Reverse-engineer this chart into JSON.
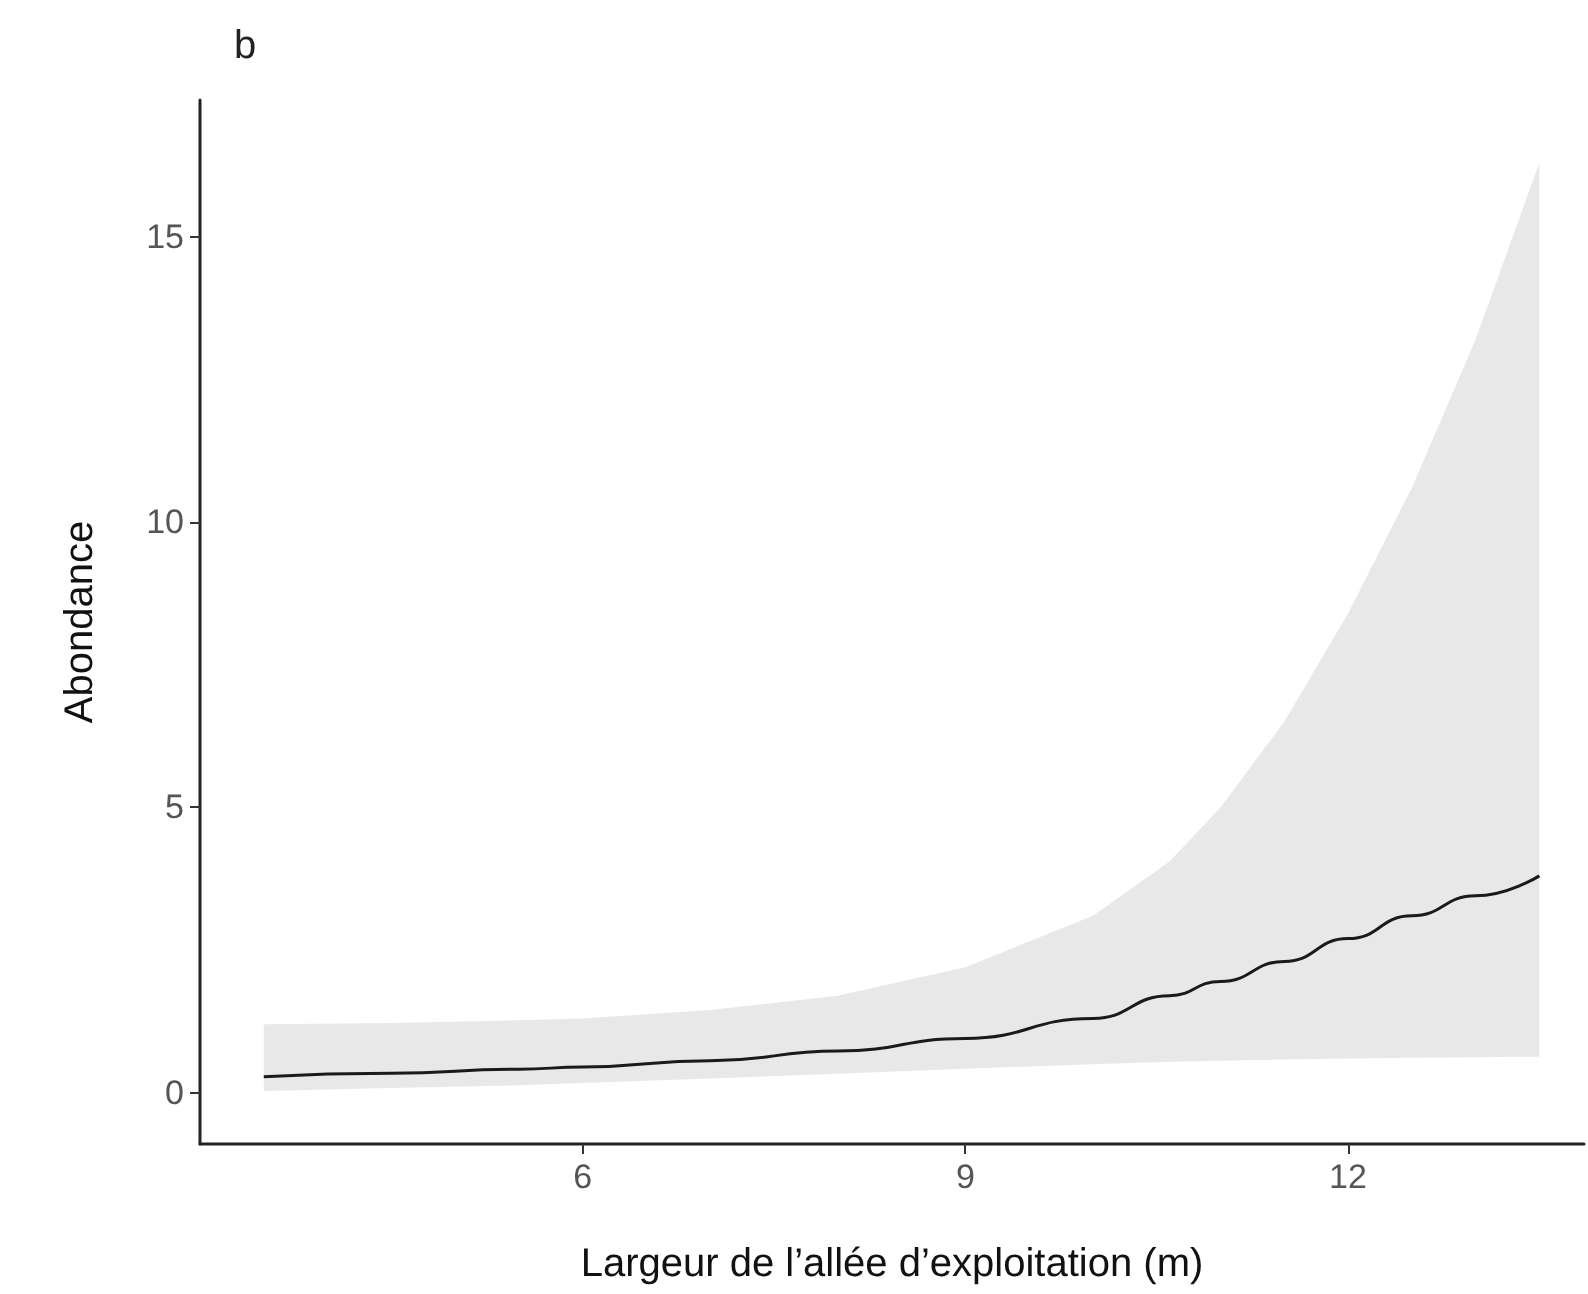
{
  "chart_data": {
    "type": "line",
    "title": "b",
    "xlabel": "Largeur de l’allée d’exploitation (m)",
    "ylabel": "Abondance",
    "x": [
      3.5,
      4.5,
      5.5,
      6,
      7,
      8,
      9,
      10,
      10.6,
      11,
      11.5,
      12,
      12.5,
      13,
      13.5
    ],
    "series": [
      {
        "color": "#1a1a1a",
        "values": [
          0.28,
          0.34,
          0.41,
          0.45,
          0.56,
          0.73,
          0.95,
          1.3,
          1.7,
          1.95,
          2.3,
          2.7,
          3.1,
          3.45,
          3.8
        ],
        "upper": [
          1.2,
          1.22,
          1.27,
          1.3,
          1.45,
          1.7,
          2.2,
          3.1,
          4.05,
          5.0,
          6.5,
          8.4,
          10.6,
          13.2,
          16.3
        ],
        "lower": [
          0.03,
          0.08,
          0.13,
          0.17,
          0.25,
          0.33,
          0.42,
          0.5,
          0.54,
          0.56,
          0.58,
          0.6,
          0.61,
          0.62,
          0.63
        ]
      }
    ],
    "xlim": [
      3,
      13.85
    ],
    "xticks": [
      6,
      9,
      12
    ],
    "ylim": [
      -0.9,
      17.4
    ],
    "yticks": [
      0,
      5,
      10,
      15
    ],
    "grid": false,
    "marker": "none",
    "line_style": "solid"
  }
}
